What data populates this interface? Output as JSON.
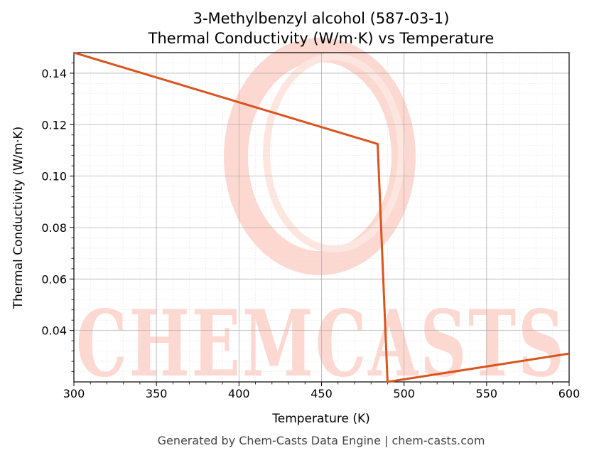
{
  "chart_data": {
    "type": "line",
    "title": "3-Methylbenzyl alcohol (587-03-1)",
    "subtitle": "Thermal Conductivity (W/m·K) vs Temperature",
    "xlabel": "Temperature (K)",
    "ylabel": "Thermal Conductivity (W/m·K)",
    "xlim": [
      300,
      600
    ],
    "ylim": [
      0.02,
      0.148
    ],
    "xticks": [
      300,
      350,
      400,
      450,
      500,
      550,
      600
    ],
    "yticks": [
      0.04,
      0.06,
      0.08,
      0.1,
      0.12,
      0.14
    ],
    "ytick_labels": [
      "0.04",
      "0.06",
      "0.08",
      "0.10",
      "0.12",
      "0.14"
    ],
    "grid": true,
    "series": [
      {
        "color": "#d9541e",
        "x": [
          300,
          484,
          490,
          600
        ],
        "y": [
          0.148,
          0.1125,
          0.02,
          0.031
        ]
      }
    ]
  },
  "watermark": {
    "text": "CHEMCASTS",
    "color": "#fdd8d0"
  },
  "footer": "Generated by Chem-Casts Data Engine | chem-casts.com"
}
